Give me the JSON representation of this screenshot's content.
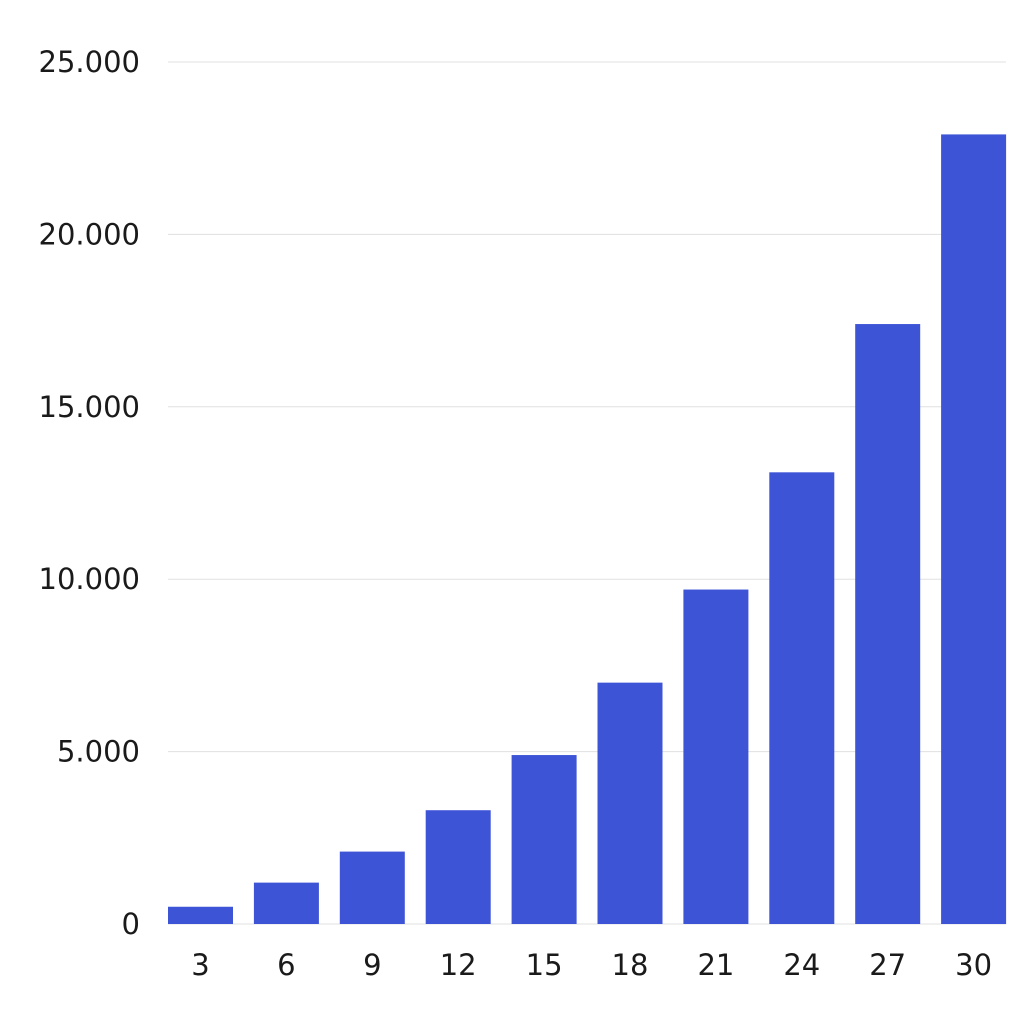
{
  "chart_data": {
    "type": "bar",
    "title": "",
    "xlabel": "",
    "ylabel": "",
    "categories": [
      "3",
      "6",
      "9",
      "12",
      "15",
      "18",
      "21",
      "24",
      "27",
      "30"
    ],
    "values": [
      500,
      1200,
      2100,
      3300,
      4900,
      7000,
      9700,
      13100,
      17400,
      22900
    ],
    "ylim": [
      0,
      25000
    ],
    "yticks": [
      0,
      5000,
      10000,
      15000,
      20000,
      25000
    ],
    "ytick_labels": [
      "0",
      "5.000",
      "10.000",
      "15.000",
      "20.000",
      "25.000"
    ],
    "grid": true,
    "legend": "none",
    "colors": {
      "bar": "#3d54d6",
      "grid": "#e0e0e0"
    }
  }
}
